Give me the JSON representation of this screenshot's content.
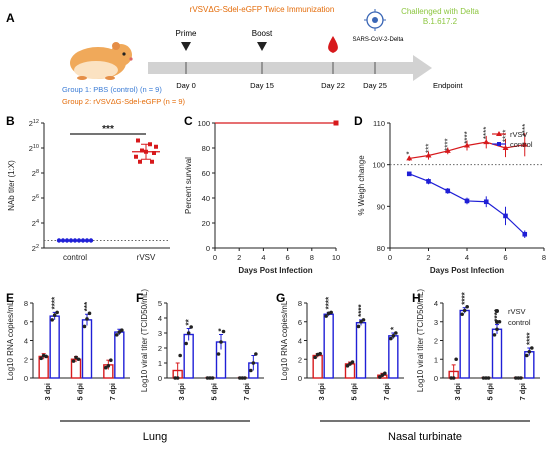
{
  "figure": {
    "panel_labels": [
      "A",
      "B",
      "C",
      "D",
      "E",
      "F",
      "G",
      "H"
    ],
    "timeline": {
      "header": "rVSVΔG-Sdel-eGFP Twice Immunization",
      "challenge": "Challenged with Delta",
      "challenge_variant": "B.1.617.2",
      "virus_label": "SARS-CoV-2-Delta",
      "events": [
        "Prime",
        "Boost"
      ],
      "days": [
        "Day 0",
        "Day 15",
        "Day 22",
        "Day 25"
      ],
      "endpoint": "Endpoint",
      "group1": "Group 1: PBS (control) (n = 9)",
      "group2": "Group 2: rVSVΔG-Sdel-eGFP (n = 9)",
      "colors": {
        "group1": "#3a7bd5",
        "group2": "#e46c0a",
        "challenge": "#8cc63f",
        "drop": "#d7191c"
      }
    },
    "lung_label": "Lung",
    "nasal_label": "Nasal turbinate"
  },
  "chart_data": [
    {
      "id": "B",
      "type": "scatter",
      "ylabel": "NAb titer (1:X)",
      "yscale": "log2",
      "ylim": [
        2,
        12
      ],
      "ytick_labels": [
        "2^2",
        "2^4",
        "2^6",
        "2^8",
        "2^10",
        "2^12"
      ],
      "categories": [
        "control",
        "rVSV"
      ],
      "significance": "***",
      "series": [
        {
          "values": [
            2.6,
            2.6,
            2.6,
            2.6,
            2.6,
            2.6,
            2.6,
            2.6,
            2.6
          ],
          "color": "#1f1fd6"
        },
        {
          "values": [
            10.6,
            10.3,
            10.1,
            9.8,
            9.7,
            9.6,
            9.3,
            8.9,
            8.9
          ],
          "mean": 9.7,
          "sd": 0.6,
          "color": "#d7191c"
        }
      ],
      "dotted_baseline": 2.6
    },
    {
      "id": "C",
      "type": "line",
      "xlabel": "Days Post Infection",
      "ylabel": "Percent survival",
      "xlim": [
        0,
        10
      ],
      "ylim": [
        0,
        100
      ],
      "xticks": [
        0,
        2,
        4,
        6,
        8,
        10
      ],
      "yticks": [
        0,
        20,
        40,
        60,
        80,
        100
      ],
      "series": [
        {
          "x": [
            0,
            10
          ],
          "y": [
            100,
            100
          ],
          "color": "#d7191c"
        }
      ]
    },
    {
      "id": "D",
      "type": "line",
      "xlabel": "Days Post Infection",
      "ylabel": "% Weigh change",
      "xlim": [
        0,
        8
      ],
      "ylim": [
        80,
        110
      ],
      "xticks": [
        0,
        2,
        4,
        6,
        8
      ],
      "yticks": [
        80,
        90,
        100,
        110
      ],
      "reference": 100,
      "legend": "top-right",
      "x": [
        1,
        2,
        3,
        4,
        5,
        6,
        7
      ],
      "series": [
        {
          "name": "rVSV",
          "y": [
            101.5,
            102.2,
            103.3,
            104.6,
            105.4,
            104.0,
            104.8
          ],
          "err": [
            0.6,
            1.0,
            0.8,
            1.2,
            1.5,
            2.2,
            2.8
          ],
          "color": "#d7191c",
          "marker": "triangle"
        },
        {
          "name": "control",
          "y": [
            97.8,
            96.0,
            93.7,
            91.3,
            91.1,
            87.7,
            83.3
          ],
          "err": [
            0.4,
            0.7,
            0.7,
            0.8,
            1.3,
            2.2,
            0.9
          ],
          "color": "#1f1fd6",
          "marker": "square"
        }
      ],
      "significance": [
        "*",
        "***",
        "****",
        "****",
        "****",
        "****",
        "****"
      ]
    },
    {
      "id": "E",
      "type": "bar",
      "panel": "Lung",
      "ylabel": "Log10 RNA copies/mL",
      "ylim": [
        0,
        8
      ],
      "yticks": [
        0,
        2,
        4,
        6,
        8
      ],
      "categories": [
        "3 dpi",
        "5 dpi",
        "7 dpi"
      ],
      "series": [
        {
          "name": "rVSV",
          "values": [
            2.3,
            2.0,
            1.4
          ],
          "err": [
            0.3,
            0.3,
            0.5
          ],
          "points": [
            [
              2.1,
              2.4,
              2.3
            ],
            [
              1.8,
              2.2,
              2.0
            ],
            [
              1.1,
              1.3,
              1.9
            ]
          ],
          "color": "#d7191c"
        },
        {
          "name": "control",
          "values": [
            6.6,
            6.2,
            4.9
          ],
          "err": [
            0.4,
            0.6,
            0.3
          ],
          "points": [
            [
              6.2,
              6.7,
              7.0
            ],
            [
              5.5,
              6.3,
              6.9
            ],
            [
              4.6,
              4.9,
              5.1
            ]
          ],
          "color": "#1f1fd6"
        }
      ],
      "significance": [
        "****",
        "***",
        ""
      ]
    },
    {
      "id": "F",
      "type": "bar",
      "panel": "Lung",
      "ylabel": "Log10 viral titer (TCID50/mL)",
      "ylim": [
        0,
        5
      ],
      "yticks": [
        0,
        1,
        2,
        3,
        4,
        5
      ],
      "categories": [
        "3 dpi",
        "5 dpi",
        "7 dpi"
      ],
      "series": [
        {
          "name": "rVSV",
          "values": [
            0.5,
            0.0,
            0.0
          ],
          "err": [
            0.5,
            0,
            0
          ],
          "points": [
            [
              0,
              0,
              1.5
            ],
            [
              0,
              0,
              0
            ],
            [
              0,
              0,
              0
            ]
          ],
          "color": "#d7191c"
        },
        {
          "name": "control",
          "values": [
            2.9,
            2.4,
            1.0
          ],
          "err": [
            0.4,
            0.5,
            0.5
          ],
          "points": [
            [
              2.3,
              3.0,
              3.4
            ],
            [
              1.6,
              2.4,
              3.1
            ],
            [
              0.5,
              1.0,
              1.6
            ]
          ],
          "color": "#1f1fd6"
        }
      ],
      "significance": [
        "**",
        "*",
        ""
      ]
    },
    {
      "id": "G",
      "type": "bar",
      "panel": "Nasal turbinate",
      "ylabel": "Log10 RNA copies/mL",
      "ylim": [
        0,
        8
      ],
      "yticks": [
        0,
        2,
        4,
        6,
        8
      ],
      "categories": [
        "3 dpi",
        "5 dpi",
        "7 dpi"
      ],
      "series": [
        {
          "name": "rVSV",
          "values": [
            2.4,
            1.5,
            0.3
          ],
          "err": [
            0.2,
            0.2,
            0.2
          ],
          "points": [
            [
              2.2,
              2.5,
              2.6
            ],
            [
              1.3,
              1.5,
              1.7
            ],
            [
              0.1,
              0.3,
              0.5
            ]
          ],
          "color": "#d7191c"
        },
        {
          "name": "control",
          "values": [
            6.8,
            5.9,
            4.5
          ],
          "err": [
            0.2,
            0.3,
            0.3
          ],
          "points": [
            [
              6.6,
              6.9,
              7.0
            ],
            [
              5.5,
              6.0,
              6.2
            ],
            [
              4.2,
              4.5,
              4.8
            ]
          ],
          "color": "#1f1fd6"
        }
      ],
      "significance": [
        "****",
        "****",
        "*"
      ]
    },
    {
      "id": "H",
      "type": "bar",
      "panel": "Nasal turbinate",
      "ylabel": "Log10 viral titer (TCID50/mL)",
      "ylim": [
        0,
        4
      ],
      "yticks": [
        0,
        1,
        2,
        3,
        4
      ],
      "categories": [
        "3 dpi",
        "5 dpi",
        "7 dpi"
      ],
      "series": [
        {
          "name": "rVSV",
          "values": [
            0.35,
            0.0,
            0.0
          ],
          "err": [
            0.35,
            0,
            0
          ],
          "points": [
            [
              0,
              0,
              1.0
            ],
            [
              0,
              0,
              0
            ],
            [
              0,
              0,
              0
            ]
          ],
          "color": "#d7191c"
        },
        {
          "name": "control",
          "values": [
            3.6,
            2.6,
            1.4
          ],
          "err": [
            0.15,
            0.25,
            0.2
          ],
          "points": [
            [
              3.4,
              3.6,
              3.8
            ],
            [
              2.3,
              2.6,
              3.0
            ],
            [
              1.2,
              1.4,
              1.6
            ]
          ],
          "color": "#1f1fd6"
        }
      ],
      "significance": [
        "****",
        "****",
        "****"
      ],
      "legend": "top-right"
    }
  ]
}
